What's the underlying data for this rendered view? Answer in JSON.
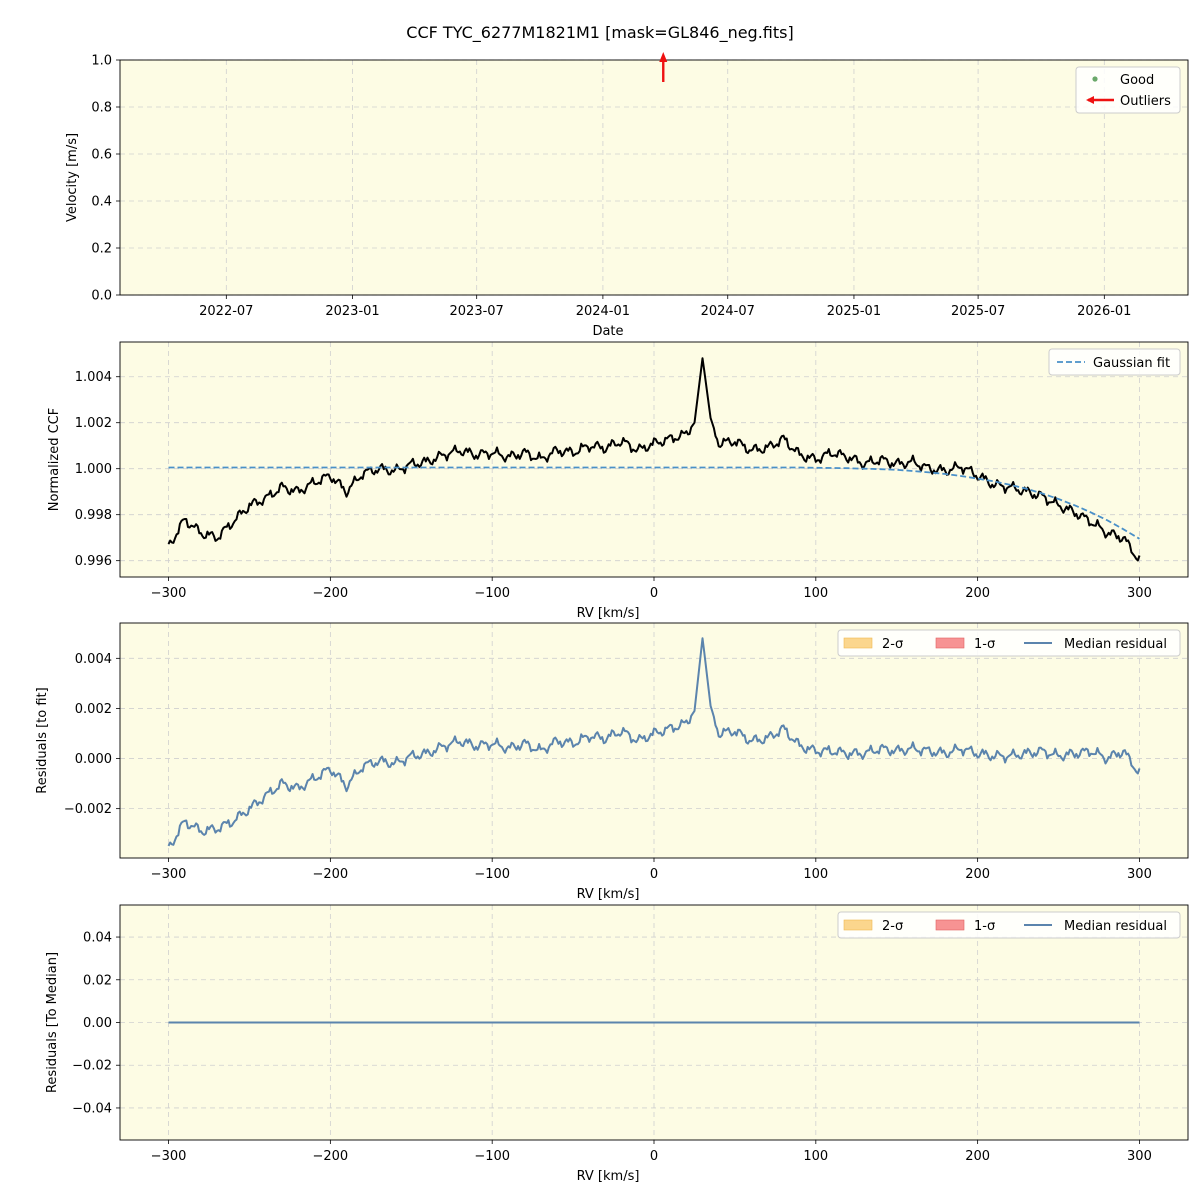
{
  "figure": {
    "title": "CCF TYC_6277M1821M1 [mask=GL846_neg.fits]"
  },
  "colors": {
    "panel_bg": "#fdfce4",
    "grid": "#cfcfcf",
    "ccf": "#000000",
    "gauss": "#4a90c8",
    "resid": "#5b84ad",
    "good": "#6aa86a",
    "outlier": "#ee1111",
    "two_sigma": "#fbd68d",
    "one_sigma": "#f79393"
  },
  "chart_data": [
    {
      "type": "scatter",
      "xlabel": "Date",
      "ylabel": "Velocity [m/s]",
      "xlim": [
        "2022-01-27",
        "2026-05-03"
      ],
      "ylim": [
        0.0,
        1.0
      ],
      "xticks": [
        "2022-07-01",
        "2023-01-01",
        "2023-07-01",
        "2024-01-01",
        "2024-07-01",
        "2025-01-01",
        "2025-07-01",
        "2026-01-01"
      ],
      "xtick_labels": [
        "2022-07",
        "2023-01",
        "2023-07",
        "2024-01",
        "2024-07",
        "2025-01",
        "2025-07",
        "2026-01"
      ],
      "yticks": [
        0.0,
        0.2,
        0.4,
        0.6,
        0.8,
        1.0
      ],
      "ytick_labels": [
        "0.0",
        "0.2",
        "0.4",
        "0.6",
        "0.8",
        "1.0"
      ],
      "grid": true,
      "legend": {
        "placement": "top-right",
        "entries": [
          "Good",
          "Outliers"
        ]
      },
      "series": [
        {
          "name": "Good",
          "points": []
        },
        {
          "name": "Outliers",
          "marker": "up-arrow",
          "points": [
            {
              "date": "2024-03-29",
              "value": 1.0
            }
          ]
        }
      ]
    },
    {
      "type": "line",
      "xlabel": "RV [km/s]",
      "ylabel": "Normalized CCF",
      "xlim": [
        -330,
        330
      ],
      "ylim": [
        0.99529,
        1.00551
      ],
      "xticks": [
        -300,
        -200,
        -100,
        0,
        100,
        200,
        300
      ],
      "xtick_labels": [
        "−300",
        "−200",
        "−100",
        "0",
        "100",
        "200",
        "300"
      ],
      "yticks": [
        0.996,
        0.998,
        1.0,
        1.002,
        1.004
      ],
      "ytick_labels": [
        "0.996",
        "0.998",
        "1.000",
        "1.002",
        "1.004"
      ],
      "grid": true,
      "legend": {
        "placement": "top-right",
        "entries": [
          "Gaussian fit"
        ]
      },
      "x": [
        -300,
        -290,
        -280,
        -270,
        -260,
        -250,
        -240,
        -230,
        -220,
        -210,
        -200,
        -190,
        -180,
        -170,
        -160,
        -150,
        -140,
        -130,
        -120,
        -110,
        -100,
        -90,
        -80,
        -70,
        -60,
        -50,
        -40,
        -30,
        -20,
        -10,
        0,
        10,
        20,
        25,
        30,
        35,
        40,
        50,
        60,
        70,
        80,
        90,
        100,
        110,
        120,
        130,
        140,
        150,
        160,
        170,
        180,
        190,
        200,
        210,
        220,
        230,
        240,
        250,
        260,
        270,
        280,
        290,
        300
      ],
      "series": [
        {
          "name": "CCF",
          "values": [
            0.9966,
            0.9978,
            0.9972,
            0.997,
            0.9977,
            0.9984,
            0.9987,
            0.9992,
            0.999,
            0.9994,
            0.9997,
            0.999,
            0.9998,
            1.0,
            0.9999,
            1.0002,
            1.0003,
            1.0006,
            1.0008,
            1.0006,
            1.0007,
            1.0005,
            1.0007,
            1.0004,
            1.0008,
            1.0007,
            1.001,
            1.0009,
            1.0012,
            1.0008,
            1.0011,
            1.0013,
            1.0015,
            1.002,
            1.0048,
            1.0022,
            1.0011,
            1.0012,
            1.0008,
            1.0009,
            1.0013,
            1.0006,
            1.0004,
            1.0007,
            1.0005,
            1.0002,
            1.0004,
            1.0002,
            1.0003,
            1.0,
            0.9999,
            1.0001,
            0.9997,
            0.9993,
            0.9992,
            0.999,
            0.9988,
            0.9984,
            0.9981,
            0.9977,
            0.9972,
            0.997,
            0.996
          ]
        },
        {
          "name": "Gaussian fit",
          "values": [
            1.00005,
            1.00005,
            1.00005,
            1.00005,
            1.00005,
            1.00005,
            1.00005,
            1.00005,
            1.00005,
            1.00005,
            1.00005,
            1.00005,
            1.00005,
            1.00005,
            1.00005,
            1.00005,
            1.00005,
            1.00005,
            1.00005,
            1.00005,
            1.00005,
            1.00005,
            1.00005,
            1.00005,
            1.00005,
            1.00005,
            1.00005,
            1.00005,
            1.00005,
            1.00005,
            1.00005,
            1.00005,
            1.00005,
            1.00005,
            1.00005,
            1.00005,
            1.00005,
            1.00005,
            1.00005,
            1.00005,
            1.00005,
            1.00005,
            1.00004,
            1.00003,
            1.00002,
            1.0,
            0.99998,
            0.99995,
            0.9999,
            0.99984,
            0.99977,
            0.99968,
            0.99957,
            0.99945,
            0.9993,
            0.99913,
            0.99892,
            0.99868,
            0.99841,
            0.9981,
            0.99776,
            0.99737,
            0.99695
          ]
        }
      ]
    },
    {
      "type": "line",
      "xlabel": "RV [km/s]",
      "ylabel": "Residuals [to fit]",
      "xlim": [
        -330,
        330
      ],
      "ylim": [
        -0.00397,
        0.00541
      ],
      "xticks": [
        -300,
        -200,
        -100,
        0,
        100,
        200,
        300
      ],
      "xtick_labels": [
        "−300",
        "−200",
        "−100",
        "0",
        "100",
        "200",
        "300"
      ],
      "yticks": [
        -0.002,
        0.0,
        0.002,
        0.004
      ],
      "ytick_labels": [
        "−0.002",
        "0.000",
        "0.002",
        "0.004"
      ],
      "grid": true,
      "legend": {
        "placement": "top-right",
        "entries": [
          "2-σ",
          "1-σ",
          "Median residual"
        ]
      },
      "x": [
        -300,
        -290,
        -280,
        -270,
        -260,
        -250,
        -240,
        -230,
        -220,
        -210,
        -200,
        -190,
        -180,
        -170,
        -160,
        -150,
        -140,
        -130,
        -120,
        -110,
        -100,
        -90,
        -80,
        -70,
        -60,
        -50,
        -40,
        -30,
        -20,
        -10,
        0,
        10,
        20,
        25,
        30,
        35,
        40,
        50,
        60,
        70,
        80,
        90,
        100,
        110,
        120,
        130,
        140,
        150,
        160,
        170,
        180,
        190,
        200,
        210,
        220,
        230,
        240,
        250,
        260,
        270,
        280,
        290,
        300
      ],
      "series": [
        {
          "name": "Median residual",
          "values": [
            -0.0036,
            -0.0025,
            -0.0029,
            -0.0028,
            -0.0025,
            -0.002,
            -0.0015,
            -0.001,
            -0.0012,
            -0.0008,
            -0.0004,
            -0.0011,
            -0.0003,
            -0.0001,
            -0.0002,
            0.0001,
            0.0002,
            0.0005,
            0.0007,
            0.0005,
            0.0006,
            0.0004,
            0.0006,
            0.0003,
            0.0007,
            0.0006,
            0.0009,
            0.0008,
            0.0011,
            0.0007,
            0.001,
            0.0012,
            0.0014,
            0.0019,
            0.0048,
            0.0021,
            0.001,
            0.0011,
            0.0007,
            0.0008,
            0.0012,
            0.0005,
            0.0003,
            0.0003,
            0.0002,
            0.0002,
            0.0004,
            0.0003,
            0.0004,
            0.0003,
            0.0002,
            0.0004,
            0.0002,
            0.0001,
            0.0001,
            0.0002,
            0.0003,
            0.0001,
            0.0002,
            0.0003,
            0.0,
            0.0003,
            -0.0006
          ]
        }
      ]
    },
    {
      "type": "line",
      "xlabel": "RV [km/s]",
      "ylabel": "Residuals [To Median]",
      "xlim": [
        -330,
        330
      ],
      "ylim": [
        -0.055,
        0.055
      ],
      "xticks": [
        -300,
        -200,
        -100,
        0,
        100,
        200,
        300
      ],
      "xtick_labels": [
        "−300",
        "−200",
        "−100",
        "0",
        "100",
        "200",
        "300"
      ],
      "yticks": [
        -0.04,
        -0.02,
        0.0,
        0.02,
        0.04
      ],
      "ytick_labels": [
        "−0.04",
        "−0.02",
        "0.00",
        "0.02",
        "0.04"
      ],
      "grid": true,
      "legend": {
        "placement": "top-right",
        "entries": [
          "2-σ",
          "1-σ",
          "Median residual"
        ]
      },
      "x": [
        -300,
        300
      ],
      "series": [
        {
          "name": "Median residual",
          "values": [
            0.0,
            0.0
          ]
        }
      ]
    }
  ]
}
